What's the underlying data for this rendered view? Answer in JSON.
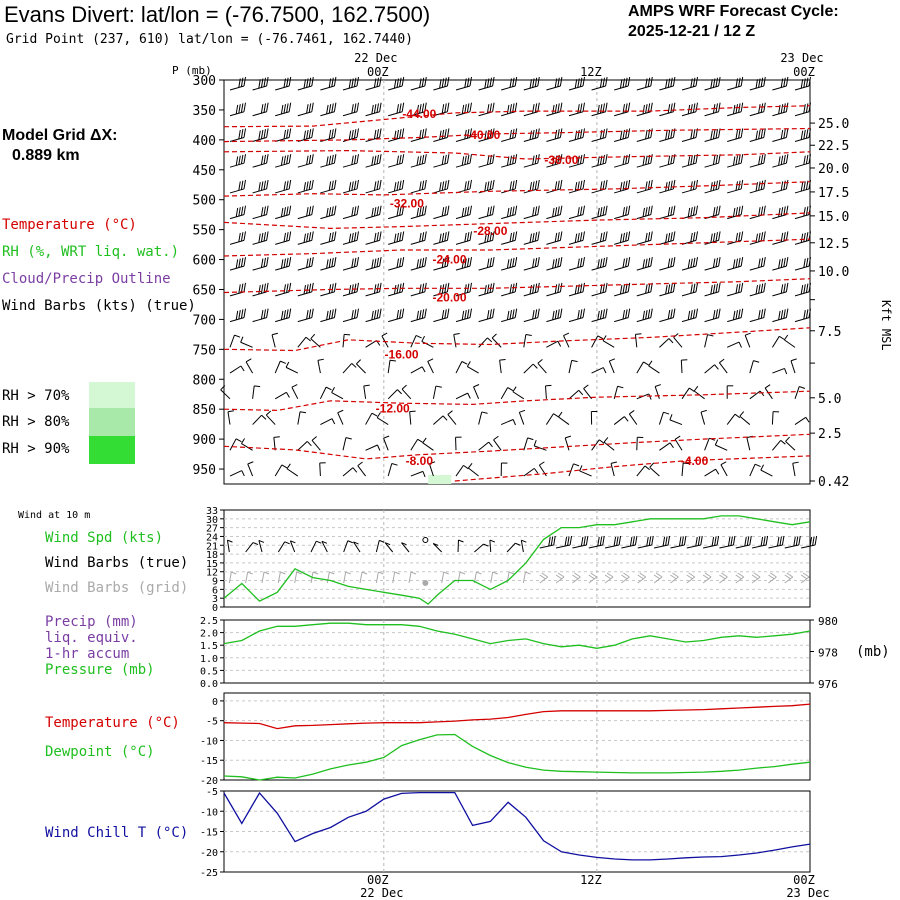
{
  "header": {
    "title": "Evans Divert:  lat/lon = (-76.7500, 162.7500)",
    "subtitle": "Grid Point (237, 610) lat/lon = (-76.7461, 162.7440)",
    "cycle_line1": "AMPS WRF Forecast Cycle:",
    "cycle_line2": "2025-12-21 / 12  Z"
  },
  "model_grid": {
    "label": "Model Grid ΔX:",
    "value": "0.889 km"
  },
  "legend": {
    "temperature": "Temperature (°C)",
    "rh": "RH (%, WRT liq. wat.)",
    "cloud": "Cloud/Precip Outline",
    "wind": "Wind Barbs (kts) (true)",
    "rh70": "RH > 70%",
    "rh80": "RH > 80%",
    "rh90": "RH > 90%"
  },
  "colors": {
    "temperature": "#d40000",
    "rh": "#1fbf1f",
    "cloud": "#7a3ea3",
    "rh70": "#d4f7d4",
    "rh80": "#a8e8a8",
    "rh90": "#33dd33",
    "windchill": "#1010a0",
    "gray_barb": "#aaaaaa"
  },
  "time_axis": {
    "top_labels": [
      {
        "date": "22 Dec",
        "time": "00Z",
        "hour": 12
      },
      {
        "date": "",
        "time": "12Z",
        "hour": 24
      },
      {
        "date": "23 Dec",
        "time": "00Z",
        "hour": 36
      }
    ],
    "bottom_labels": [
      {
        "date": "22 Dec",
        "time": "00Z",
        "hour": 12
      },
      {
        "date": "",
        "time": "12Z",
        "hour": 24
      },
      {
        "date": "23 Dec",
        "time": "00Z",
        "hour": 36
      }
    ],
    "range_hours": [
      3,
      36
    ]
  },
  "chart_data": [
    {
      "type": "line",
      "panel": "skew-section",
      "ylabel_left": "P (mb)",
      "ylabel_right": "Kft MSL",
      "p_range": [
        300,
        975
      ],
      "p_ticks": [
        300,
        350,
        400,
        450,
        500,
        550,
        600,
        650,
        700,
        750,
        800,
        850,
        900,
        950
      ],
      "kft_ticks": [
        {
          "p": 372,
          "label": "25.0"
        },
        {
          "p": 409,
          "label": "22.5"
        },
        {
          "p": 447,
          "label": "20.0"
        },
        {
          "p": 487,
          "label": "17.5"
        },
        {
          "p": 527,
          "label": "15.0"
        },
        {
          "p": 572,
          "label": "12.5"
        },
        {
          "p": 619,
          "label": "10.0"
        },
        {
          "p": 667,
          "label": ""
        },
        {
          "p": 719,
          "label": "7.5"
        },
        {
          "p": 773,
          "label": ""
        },
        {
          "p": 831,
          "label": "5.0"
        },
        {
          "p": 890,
          "label": "2.5"
        },
        {
          "p": 970,
          "label": "0.42"
        }
      ],
      "isotherms": [
        {
          "label": "-44.00",
          "pts": [
            [
              3,
              378
            ],
            [
              8,
              377
            ],
            [
              12,
              366
            ],
            [
              16,
              355
            ],
            [
              20,
              352
            ],
            [
              27,
              352
            ],
            [
              32,
              346
            ],
            [
              36,
              343
            ]
          ],
          "lx": 14.0,
          "lp": 355
        },
        {
          "label": "-40.00",
          "pts": [
            [
              3,
              403
            ],
            [
              10,
              400
            ],
            [
              14,
              396
            ],
            [
              18,
              390
            ],
            [
              22,
              388
            ],
            [
              28,
              384
            ],
            [
              36,
              381
            ]
          ],
          "lx": 17.6,
          "lp": 390
        },
        {
          "label": "-36.00",
          "pts": [
            [
              3,
              420
            ],
            [
              10,
              418
            ],
            [
              16,
              422
            ],
            [
              20,
              432
            ],
            [
              26,
              428
            ],
            [
              32,
              425
            ],
            [
              36,
              420
            ]
          ],
          "lx": 22.0,
          "lp": 432
        },
        {
          "label": "-32.00",
          "pts": [
            [
              3,
              494
            ],
            [
              8,
              490
            ],
            [
              12,
              492
            ],
            [
              18,
              486
            ],
            [
              25,
              482
            ],
            [
              31,
              476
            ],
            [
              36,
              470
            ]
          ],
          "lx": 13.3,
          "lp": 505
        },
        {
          "label": "-28.00",
          "pts": [
            [
              3,
              538
            ],
            [
              9,
              548
            ],
            [
              13,
              545
            ],
            [
              18,
              540
            ],
            [
              24,
              534
            ],
            [
              30,
              530
            ],
            [
              36,
              522
            ]
          ],
          "lx": 18.0,
          "lp": 551
        },
        {
          "label": "-24.00",
          "pts": [
            [
              3,
              594
            ],
            [
              8,
              590
            ],
            [
              13,
              584
            ],
            [
              18,
              584
            ],
            [
              24,
              578
            ],
            [
              30,
              572
            ],
            [
              36,
              566
            ]
          ],
          "lx": 15.7,
          "lp": 598
        },
        {
          "label": "-20.00",
          "pts": [
            [
              3,
              655
            ],
            [
              9,
              650
            ],
            [
              13,
              648
            ],
            [
              18,
              648
            ],
            [
              23,
              644
            ],
            [
              28,
              640
            ],
            [
              32,
              637
            ],
            [
              36,
              632
            ]
          ],
          "lx": 15.7,
          "lp": 662
        },
        {
          "label": "-16.00",
          "pts": [
            [
              3,
              750
            ],
            [
              7,
              752
            ],
            [
              10,
              734
            ],
            [
              14,
              740
            ],
            [
              18,
              742
            ],
            [
              22,
              736
            ],
            [
              27,
              730
            ],
            [
              31,
              723
            ],
            [
              36,
              714
            ]
          ],
          "lx": 13.0,
          "lp": 757
        },
        {
          "label": "-12.00",
          "pts": [
            [
              3,
              850
            ],
            [
              6,
              852
            ],
            [
              9,
              836
            ],
            [
              13,
              840
            ],
            [
              17,
              842
            ],
            [
              20,
              836
            ],
            [
              24,
              830
            ],
            [
              30,
              826
            ],
            [
              36,
              820
            ]
          ],
          "lx": 12.5,
          "lp": 847
        },
        {
          "label": "-8.00",
          "pts": [
            [
              3,
              912
            ],
            [
              7,
              918
            ],
            [
              11,
              933
            ],
            [
              14,
              926
            ],
            [
              18,
              920
            ],
            [
              22,
              913
            ],
            [
              26,
              906
            ],
            [
              30,
              900
            ],
            [
              36,
              892
            ]
          ],
          "lx": 14.0,
          "lp": 935
        },
        {
          "label": "-4.00",
          "pts": [
            [
              16,
              970
            ],
            [
              21,
              958
            ],
            [
              25,
              946
            ],
            [
              29,
              936
            ],
            [
              36,
              928
            ]
          ],
          "lx": 29.5,
          "lp": 935
        }
      ],
      "rh_patch": {
        "x": [
          14.5,
          15.8
        ],
        "p": [
          960,
          975
        ]
      }
    },
    {
      "type": "line",
      "panel": "wind10m",
      "title": "Wind at 10 m",
      "labels": [
        "Wind Spd (kts)",
        "Wind Barbs (true)",
        "Wind Barbs (grid)"
      ],
      "y_ticks": [
        0,
        3,
        6,
        9,
        12,
        15,
        18,
        21,
        24,
        27,
        30,
        33
      ],
      "ylim": [
        0,
        33
      ],
      "series": [
        {
          "name": "Wind Spd (kts)",
          "x": [
            3,
            4,
            5,
            6,
            7,
            8,
            9,
            10,
            11,
            12,
            13,
            14,
            14.5,
            15,
            16,
            17,
            18,
            19,
            20,
            21,
            22,
            23,
            24,
            25,
            26,
            27,
            28,
            29,
            30,
            31,
            32,
            33,
            34,
            35,
            36
          ],
          "values": [
            3,
            8,
            2,
            5,
            13,
            10,
            9,
            7,
            6,
            5,
            4,
            3,
            1,
            4,
            9,
            9,
            6,
            9,
            15,
            23,
            27,
            27,
            28,
            28,
            29,
            30,
            30,
            30,
            30,
            31,
            31,
            30,
            29,
            28,
            29
          ]
        }
      ]
    },
    {
      "type": "line",
      "panel": "precip-pressure",
      "labels": [
        "Precip (mm)",
        "liq. equiv.",
        "1-hr accum",
        "Pressure (mb)"
      ],
      "y_ticks_left": [
        "0.0",
        "0.5",
        "1.0",
        "1.5",
        "2.0",
        "2.5"
      ],
      "y_ticks_right": [
        "976",
        "978",
        "980"
      ],
      "ylabel_right": "(mb)",
      "ylim_pressure": [
        976,
        980
      ],
      "series": [
        {
          "name": "Pressure (mb)",
          "x": [
            3,
            4,
            5,
            6,
            7,
            8,
            9,
            10,
            11,
            12,
            13,
            14,
            15,
            16,
            17,
            18,
            19,
            20,
            21,
            22,
            23,
            24,
            25,
            26,
            27,
            28,
            29,
            30,
            31,
            32,
            33,
            34,
            35,
            36
          ],
          "values": [
            978.5,
            978.7,
            979.3,
            979.6,
            979.6,
            979.7,
            979.8,
            979.8,
            979.7,
            979.7,
            979.7,
            979.6,
            979.3,
            979.1,
            978.8,
            978.5,
            978.7,
            978.8,
            978.5,
            978.3,
            978.4,
            978.2,
            978.4,
            978.8,
            979.0,
            978.8,
            978.6,
            978.7,
            978.9,
            979.0,
            978.9,
            979.0,
            979.1,
            979.3
          ]
        }
      ]
    },
    {
      "type": "line",
      "panel": "temperature",
      "labels": [
        "Temperature (°C)",
        "Dewpoint (°C)"
      ],
      "y_ticks": [
        0,
        -5,
        -10,
        -15,
        -20
      ],
      "ylim": [
        -20,
        2
      ],
      "series": [
        {
          "name": "Temperature (°C)",
          "x": [
            3,
            4,
            5,
            6,
            7,
            8,
            9,
            10,
            11,
            12,
            13,
            14,
            15,
            16,
            17,
            18,
            19,
            20,
            21,
            22,
            23,
            24,
            25,
            26,
            27,
            28,
            29,
            30,
            31,
            32,
            33,
            34,
            35,
            36
          ],
          "values": [
            -5.5,
            -5.6,
            -5.7,
            -7.0,
            -6.3,
            -6.2,
            -6.0,
            -5.8,
            -5.6,
            -5.5,
            -5.5,
            -5.5,
            -5.3,
            -5.1,
            -4.8,
            -4.6,
            -4.2,
            -3.4,
            -2.7,
            -2.5,
            -2.5,
            -2.5,
            -2.5,
            -2.5,
            -2.5,
            -2.4,
            -2.3,
            -2.2,
            -2.0,
            -1.8,
            -1.6,
            -1.4,
            -1.2,
            -0.8
          ]
        },
        {
          "name": "Dewpoint (°C)",
          "x": [
            3,
            4,
            5,
            6,
            7,
            8,
            9,
            10,
            11,
            12,
            13,
            14,
            15,
            16,
            17,
            18,
            19,
            20,
            21,
            22,
            23,
            24,
            25,
            26,
            27,
            28,
            29,
            30,
            31,
            32,
            33,
            34,
            35,
            36
          ],
          "values": [
            -19.0,
            -19.2,
            -20.0,
            -19.3,
            -19.5,
            -18.5,
            -17.2,
            -16.2,
            -15.5,
            -14.3,
            -11.3,
            -9.8,
            -8.6,
            -8.5,
            -11.5,
            -13.8,
            -15.6,
            -16.8,
            -17.5,
            -17.8,
            -17.9,
            -18.0,
            -18.1,
            -18.2,
            -18.2,
            -18.2,
            -18.1,
            -18.0,
            -17.8,
            -17.5,
            -17.0,
            -16.6,
            -16.0,
            -15.5
          ]
        }
      ]
    },
    {
      "type": "line",
      "panel": "windchill",
      "labels": [
        "Wind Chill T (°C)"
      ],
      "y_ticks": [
        -5,
        -10,
        -15,
        -20,
        -25
      ],
      "ylim": [
        -25,
        -5
      ],
      "series": [
        {
          "name": "Wind Chill T (°C)",
          "x": [
            3,
            4,
            5,
            6,
            7,
            8,
            9,
            10,
            11,
            12,
            13,
            14,
            15,
            16,
            17,
            18,
            19,
            20,
            21,
            22,
            23,
            24,
            25,
            26,
            27,
            28,
            29,
            30,
            31,
            32,
            33,
            34,
            35,
            36
          ],
          "values": [
            -5.5,
            -13,
            -5.5,
            -10.5,
            -17.5,
            -15.5,
            -14,
            -11.5,
            -10,
            -7.0,
            -5.6,
            -5.4,
            -5.4,
            -5.4,
            -13.5,
            -12.5,
            -7.8,
            -11.5,
            -17.3,
            -20,
            -20.8,
            -21.4,
            -21.8,
            -22,
            -22,
            -21.8,
            -21.5,
            -21.3,
            -21.2,
            -20.8,
            -20.3,
            -19.6,
            -18.8,
            -18.1
          ]
        }
      ]
    }
  ]
}
